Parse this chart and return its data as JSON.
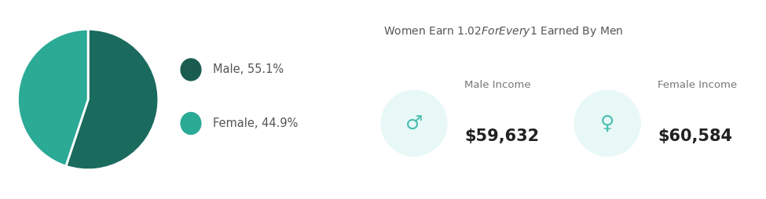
{
  "pie_values": [
    55.1,
    44.9
  ],
  "pie_colors": [
    "#1a6b5e",
    "#2baa96"
  ],
  "pie_labels": [
    "Male, 55.1%",
    "Female, 44.9%"
  ],
  "legend_colors": [
    "#1a5c50",
    "#2baa96"
  ],
  "title": "Women Earn $1.02 For Every $1 Earned By Men",
  "male_label": "Male Income",
  "female_label": "Female Income",
  "male_value": "$59,632",
  "female_value": "$60,584",
  "bg_color": "#ffffff",
  "panel_color": "#eef1f6",
  "title_color": "#555555",
  "value_color": "#222222",
  "sub_label_color": "#777777",
  "icon_bg_color": "#e8f8f6",
  "icon_symbol_color": "#4abfb0",
  "icon_outline_color": "#7dcdc6"
}
